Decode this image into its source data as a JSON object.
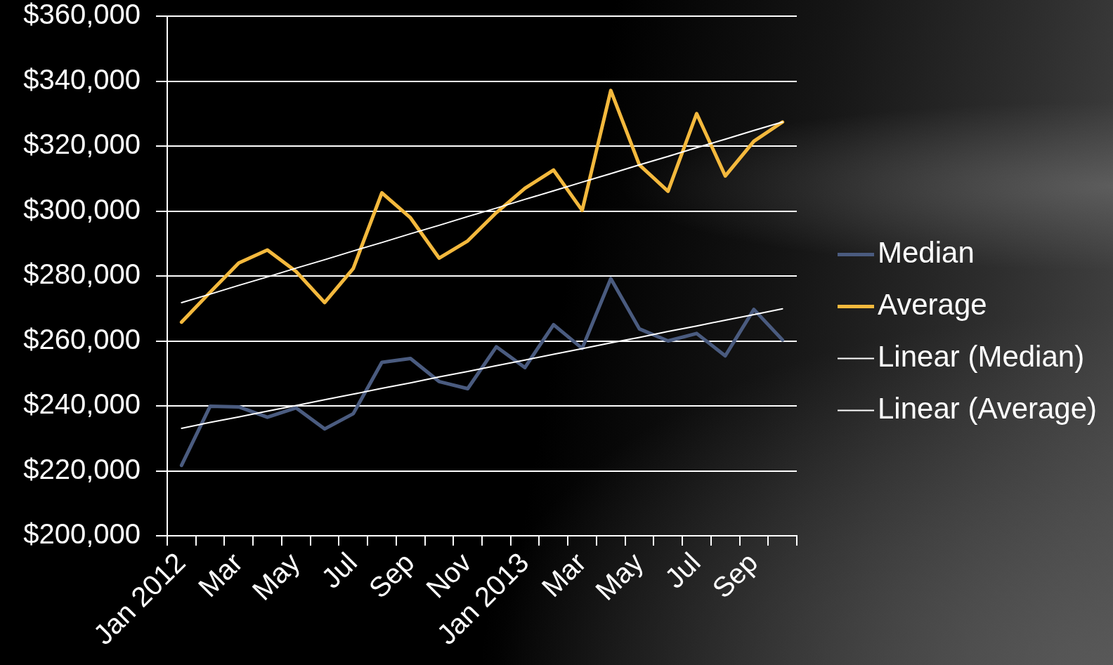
{
  "chart_data": {
    "type": "line",
    "categories": [
      "Jan 2012",
      null,
      "Mar",
      null,
      "May",
      null,
      "Jul",
      null,
      "Sep",
      null,
      "Nov",
      null,
      "Jan 2013",
      null,
      "Mar",
      null,
      "May",
      null,
      "Jul",
      null,
      "Sep",
      null
    ],
    "series": [
      {
        "name": "Median",
        "color": "#4a5b7f",
        "values": [
          221700,
          239900,
          239700,
          236500,
          239400,
          232900,
          237600,
          253400,
          254600,
          247500,
          245300,
          258200,
          251800,
          265000,
          257700,
          279200,
          263700,
          260000,
          262300,
          255400,
          269700,
          260300
        ]
      },
      {
        "name": "Average",
        "color": "#f4b93d",
        "values": [
          265800,
          275000,
          284000,
          288000,
          281400,
          271800,
          282300,
          305600,
          297900,
          285500,
          290800,
          299500,
          307000,
          312600,
          300200,
          337100,
          314200,
          306100,
          330000,
          310800,
          321500,
          327400
        ]
      },
      {
        "name": "Linear (Median)",
        "type": "line",
        "color": "#ffffff",
        "values": [
          233100,
          234900,
          236600,
          238400,
          240100,
          241900,
          243600,
          245400,
          247100,
          248900,
          250600,
          252400,
          254100,
          255900,
          257600,
          259400,
          261100,
          262900,
          264600,
          266400,
          268100,
          269900
        ]
      },
      {
        "name": "Linear (Average)",
        "type": "line",
        "color": "#ffffff",
        "values": [
          271800,
          274400,
          277100,
          279700,
          282400,
          285000,
          287700,
          290300,
          293000,
          295600,
          298300,
          300900,
          303600,
          306200,
          308900,
          311500,
          314200,
          316800,
          319500,
          322100,
          324800,
          327400
        ]
      }
    ],
    "ylim": [
      200000,
      360000
    ],
    "yticks": [
      {
        "value": 200000,
        "label": "$200,000"
      },
      {
        "value": 220000,
        "label": "$220,000"
      },
      {
        "value": 240000,
        "label": "$240,000"
      },
      {
        "value": 260000,
        "label": "$260,000"
      },
      {
        "value": 280000,
        "label": "$280,000"
      },
      {
        "value": 300000,
        "label": "$300,000"
      },
      {
        "value": 320000,
        "label": "$320,000"
      },
      {
        "value": 340000,
        "label": "$340,000"
      },
      {
        "value": 360000,
        "label": "$360,000"
      }
    ],
    "grid": "y",
    "legend": "right"
  }
}
